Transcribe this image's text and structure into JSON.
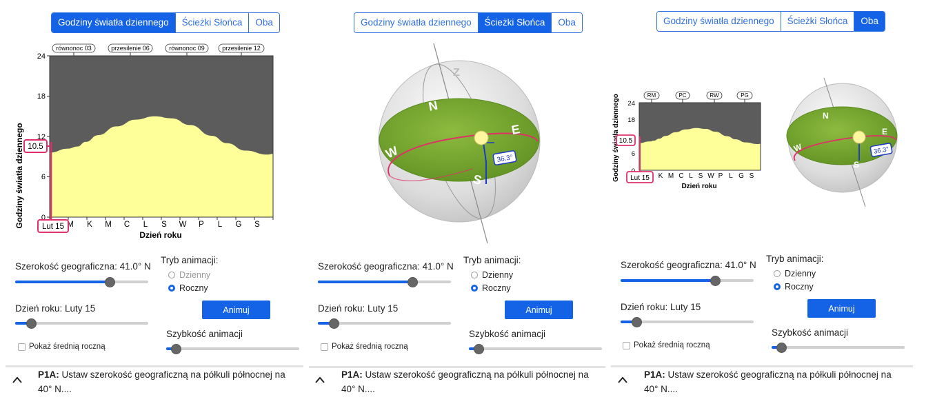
{
  "tabs": [
    "Godziny światła dziennego",
    "Ścieżki Słońca",
    "Oba"
  ],
  "panels": [
    {
      "active_tab": 0
    },
    {
      "active_tab": 1
    },
    {
      "active_tab": 2
    }
  ],
  "chart": {
    "ylabel": "Godziny światła dziennego",
    "xlabel": "Dzień roku",
    "yticks": [
      "24",
      "18",
      "12",
      "6",
      "0"
    ],
    "month_letters": [
      "M",
      "K",
      "M",
      "C",
      "L",
      "S",
      "W",
      "P",
      "L",
      "G",
      "S"
    ],
    "event_labels": [
      "równonoc 03",
      "przesilenie 06",
      "równonoc 09",
      "przesilenie 12"
    ],
    "event_labels_short": [
      "RM",
      "PC",
      "RW",
      "PG"
    ],
    "month_letters_small": [
      "K",
      "M",
      "C",
      "L",
      "S",
      "W",
      "P",
      "L",
      "G",
      "S"
    ],
    "current_value_label": "10.5",
    "current_date_label": "Lut 15"
  },
  "chart_data": {
    "type": "area",
    "title": "",
    "xlabel": "Dzień roku",
    "ylabel": "Godziny światła dziennego",
    "ylim": [
      0,
      24
    ],
    "x": [
      1,
      31,
      46,
      60,
      80,
      110,
      141,
      172,
      200,
      230,
      265,
      290,
      320,
      356,
      365
    ],
    "series": [
      {
        "values": [
          9.6,
          10.2,
          10.5,
          11.2,
          12.2,
          13.5,
          14.5,
          15.0,
          14.7,
          13.7,
          12.1,
          11.0,
          9.9,
          9.3,
          9.4
        ]
      }
    ],
    "marker": {
      "x": 46,
      "y": 10.5
    }
  },
  "sphere": {
    "directions": {
      "N": "N",
      "E": "E",
      "S": "S",
      "W": "W",
      "Z": "Z"
    },
    "altitude_label": "36.3°"
  },
  "controls": {
    "latitude_label": "Szerokość geograficzna: 41.0° N",
    "latitude_value": 41.0,
    "latitude_fraction": 0.71,
    "day_label": "Dzień roku: Luty 15",
    "day_fraction": 0.12,
    "anim_mode_label": "Tryb animacji:",
    "mode_daily": "Dzienny",
    "mode_yearly": "Roczny",
    "animate_button": "Animuj",
    "speed_label": "Szybkość animacji",
    "speed_fraction": 0.07,
    "show_avg_label": "Pokaż średnią roczną"
  },
  "prompt": {
    "id": "P1A:",
    "text": " Ustaw szerokość geograficzną na półkuli północnej na 40° N...."
  },
  "colors": {
    "accent": "#1463e6",
    "night": "#5c5c5c",
    "day": "#ffff99",
    "marker": "#e0306a",
    "ground": "#79a832"
  }
}
